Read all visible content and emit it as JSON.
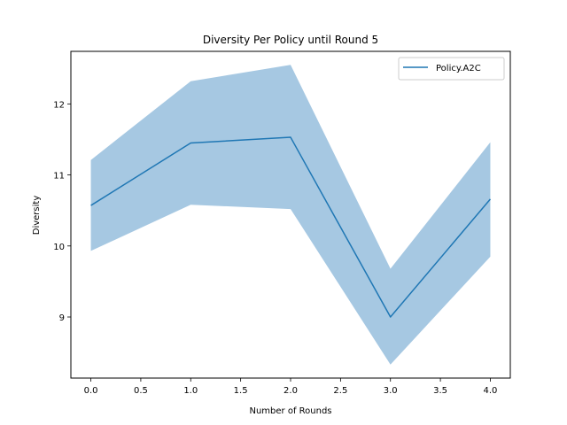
{
  "chart_data": {
    "type": "line",
    "title": "Diversity Per Policy until Round 5",
    "xlabel": "Number of Rounds",
    "ylabel": "Diversity",
    "x": [
      0,
      1,
      2,
      3,
      4
    ],
    "series": [
      {
        "name": "Policy.A2C",
        "values": [
          10.57,
          11.45,
          11.53,
          9.0,
          10.66
        ],
        "lower": [
          9.93,
          10.58,
          10.52,
          8.33,
          9.85
        ],
        "upper": [
          11.21,
          12.32,
          12.55,
          9.68,
          11.46
        ],
        "color": "#1f77b4",
        "band_color": "#a6c8e2"
      }
    ],
    "xticks": [
      0.0,
      0.5,
      1.0,
      1.5,
      2.0,
      2.5,
      3.0,
      3.5,
      4.0
    ],
    "xtick_labels": [
      "0.0",
      "0.5",
      "1.0",
      "1.5",
      "2.0",
      "2.5",
      "3.0",
      "3.5",
      "4.0"
    ],
    "yticks": [
      9,
      10,
      11,
      12
    ],
    "ytick_labels": [
      "9",
      "10",
      "11",
      "12"
    ],
    "xlim": [
      -0.2,
      4.2
    ],
    "ylim": [
      8.14,
      12.74
    ],
    "grid": false,
    "legend_position": "top-right"
  }
}
